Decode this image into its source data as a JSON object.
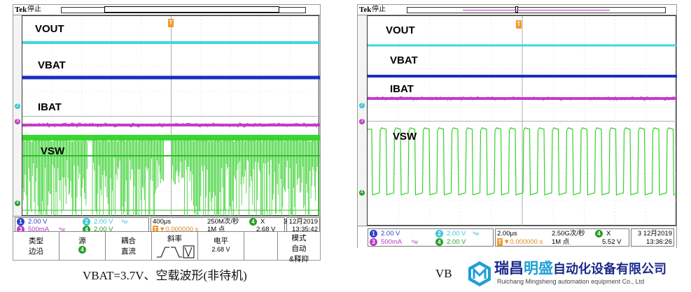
{
  "scope_left": {
    "brand": "Tek",
    "state": "停止",
    "trigger_marker": "T",
    "signals": [
      "VOUT",
      "VBAT",
      "IBAT",
      "VSW"
    ],
    "channels": [
      {
        "num": "1",
        "value": "2.00 V",
        "color": "#2a3fc8"
      },
      {
        "num": "2",
        "value": "2.00 V",
        "color": "#3cc6d8",
        "suffix": "ᵇ𝓌"
      },
      {
        "num": "3",
        "value": "500mA",
        "color": "#b83dbe",
        "suffix": "ᵇ𝓌"
      },
      {
        "num": "4",
        "value": "2.00 V",
        "color": "#28a02a"
      }
    ],
    "timebase": "400μs",
    "sample_rate": "250M次/秒",
    "trigger_delay": "▼0.000000 s",
    "record_length": "1M 点",
    "meas_channel": "4",
    "meas_label": "X",
    "meas_value": "2.68 V",
    "date": "3 12月2019",
    "time": "13:35:42",
    "menu": {
      "type_label": "类型",
      "type_value": "边沿",
      "source_label": "源",
      "source_value": "4",
      "coupling_label": "耦合",
      "coupling_value": "直流",
      "slope_label": "斜率",
      "level_label": "电平",
      "level_value": "2.68 V",
      "mode_label": "模式",
      "mode_value": "自动",
      "mode_extra": "&释抑"
    }
  },
  "scope_right": {
    "brand": "Tek",
    "state": "停止",
    "trigger_marker": "T",
    "signals": [
      "VOUT",
      "VBAT",
      "IBAT",
      "VSW"
    ],
    "channels": [
      {
        "num": "1",
        "value": "2.00 V",
        "color": "#2a3fc8"
      },
      {
        "num": "2",
        "value": "2.00 V",
        "color": "#3cc6d8",
        "suffix": "ᵇ𝓌"
      },
      {
        "num": "3",
        "value": "500mA",
        "color": "#b83dbe",
        "suffix": "ᵇ𝓌"
      },
      {
        "num": "4",
        "value": "2.00 V",
        "color": "#28a02a"
      }
    ],
    "timebase": "2.00μs",
    "sample_rate": "2.50G次/秒",
    "trigger_delay": "▼0.000000 s",
    "record_length": "1M 点",
    "meas_channel": "4",
    "meas_label": "X",
    "meas_value": "5.52 V",
    "date": "3 12月2019",
    "time": "13:36:26"
  },
  "captions": {
    "left": "VBAT=3.7V、空载波形(非待机)",
    "right": "VB"
  },
  "watermark": {
    "name_part1": "瑞昌",
    "name_part2": "明盛",
    "name_part3": "自动化设备有限公司",
    "subtitle": "Ruichang Mingsheng automation equipment Co., Ltd"
  }
}
